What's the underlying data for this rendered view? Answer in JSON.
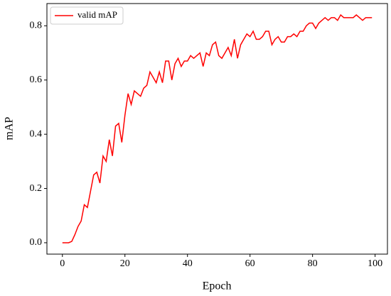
{
  "chart_data": {
    "type": "line",
    "x": [
      0,
      1,
      2,
      3,
      4,
      5,
      6,
      7,
      8,
      9,
      10,
      11,
      12,
      13,
      14,
      15,
      16,
      17,
      18,
      19,
      20,
      21,
      22,
      23,
      24,
      25,
      26,
      27,
      28,
      29,
      30,
      31,
      32,
      33,
      34,
      35,
      36,
      37,
      38,
      39,
      40,
      41,
      42,
      43,
      44,
      45,
      46,
      47,
      48,
      49,
      50,
      51,
      52,
      53,
      54,
      55,
      56,
      57,
      58,
      59,
      60,
      61,
      62,
      63,
      64,
      65,
      66,
      67,
      68,
      69,
      70,
      71,
      72,
      73,
      74,
      75,
      76,
      77,
      78,
      79,
      80,
      81,
      82,
      83,
      84,
      85,
      86,
      87,
      88,
      89,
      90,
      91,
      92,
      93,
      94,
      95,
      96,
      97,
      98,
      99
    ],
    "series": [
      {
        "name": "valid mAP",
        "color": "#ff0000",
        "values": [
          0,
          0,
          0,
          0.005,
          0.03,
          0.06,
          0.08,
          0.14,
          0.13,
          0.19,
          0.25,
          0.26,
          0.22,
          0.32,
          0.3,
          0.38,
          0.32,
          0.43,
          0.44,
          0.37,
          0.47,
          0.55,
          0.51,
          0.56,
          0.55,
          0.54,
          0.57,
          0.58,
          0.63,
          0.61,
          0.59,
          0.63,
          0.59,
          0.67,
          0.67,
          0.6,
          0.66,
          0.68,
          0.65,
          0.67,
          0.67,
          0.69,
          0.68,
          0.69,
          0.7,
          0.65,
          0.7,
          0.69,
          0.73,
          0.74,
          0.69,
          0.68,
          0.7,
          0.72,
          0.69,
          0.75,
          0.68,
          0.73,
          0.75,
          0.77,
          0.76,
          0.78,
          0.75,
          0.75,
          0.76,
          0.78,
          0.78,
          0.73,
          0.75,
          0.76,
          0.74,
          0.74,
          0.76,
          0.76,
          0.77,
          0.76,
          0.78,
          0.78,
          0.8,
          0.81,
          0.81,
          0.79,
          0.81,
          0.82,
          0.83,
          0.82,
          0.83,
          0.83,
          0.82,
          0.84,
          0.83,
          0.83,
          0.83,
          0.83,
          0.84,
          0.83,
          0.82,
          0.83,
          0.83,
          0.83
        ]
      }
    ],
    "xlabel": "Epoch",
    "ylabel": "mAP",
    "xlim": [
      -4.95,
      103.95
    ],
    "xticks": [
      0,
      20,
      40,
      60,
      80,
      100
    ],
    "ylim": [
      -0.042,
      0.882
    ],
    "yticks": [
      {
        "value": 0,
        "label": "0.0"
      },
      0.2,
      0.4,
      0.6,
      0.8
    ],
    "legend": "upper left"
  }
}
